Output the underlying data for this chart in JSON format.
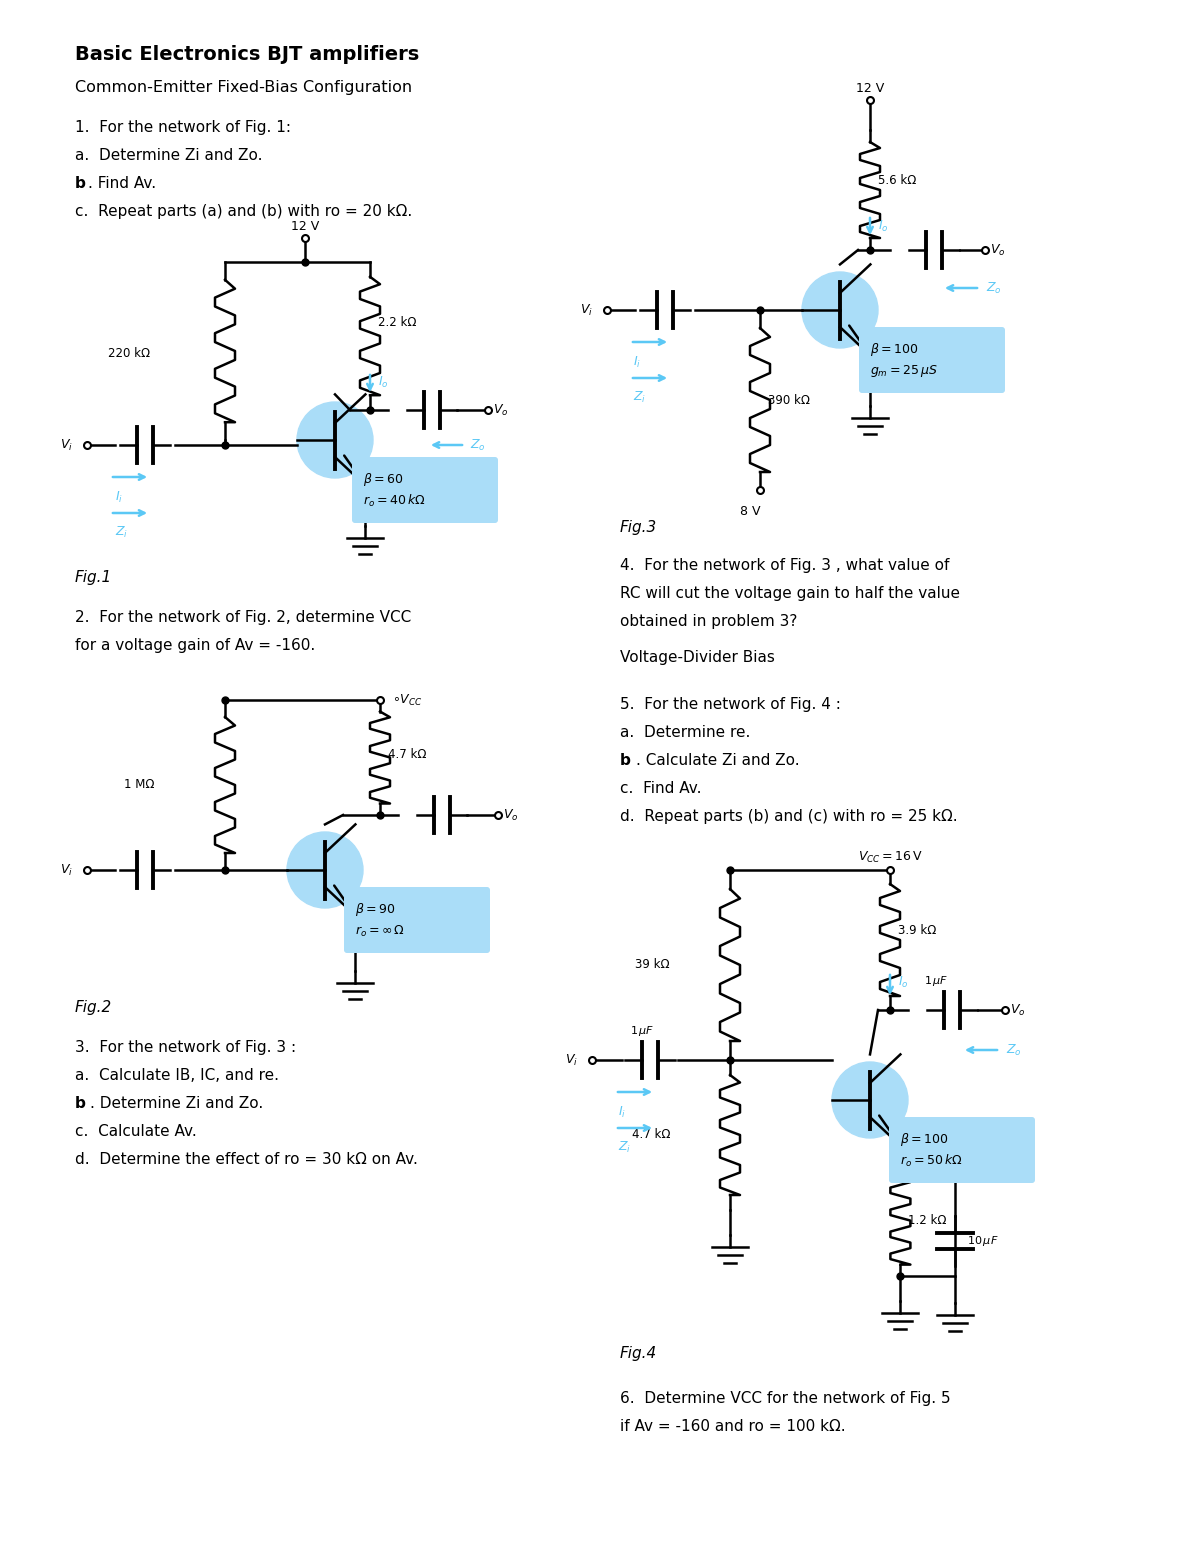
{
  "title": "Basic Electronics BJT amplifiers",
  "subtitle": "Common-Emitter Fixed-Bias Configuration",
  "bg_color": "#ffffff",
  "text_color": "#000000",
  "blue_color": "#5bc8f5",
  "light_blue_bg": "#aaddf8",
  "q1_problems": [
    "1.  For the network of Fig. 1:",
    "a.  Determine Zi and Zo.",
    "b.  Find Av.",
    "c.  Repeat parts (a) and (b) with ro = 20 kΩ."
  ],
  "q2_problems": [
    "2.  For the network of Fig. 2, determine VCC",
    "for a voltage gain of Av = -160."
  ],
  "q3_problems": [
    "3.  For the network of Fig. 3 :",
    "a.  Calculate IB, IC, and re.",
    "b.  Determine Zi and Zo.",
    "c.  Calculate Av.",
    "d.  Determine the effect of ro = 30 kΩ on Av."
  ],
  "q4_problems": [
    "4.  For the network of Fig. 3 , what value of",
    "RC will cut the voltage gain to half the value",
    "obtained in problem 3?"
  ],
  "q4_subtitle": "Voltage-Divider Bias",
  "q5_problems": [
    "5.  For the network of Fig. 4 :",
    "a.  Determine re.",
    "b.  Calculate Zi and Zo.",
    "c.  Find Av.",
    "d.  Repeat parts (b) and (c) with ro = 25 kΩ."
  ],
  "q6_problems": [
    "6.  Determine VCC for the network of Fig. 5",
    "if Av = -160 and ro = 100 kΩ."
  ],
  "fig1_label": "Fig.1",
  "fig2_label": "Fig.2",
  "fig3_label": "Fig.3",
  "fig4_label": "Fig.4"
}
